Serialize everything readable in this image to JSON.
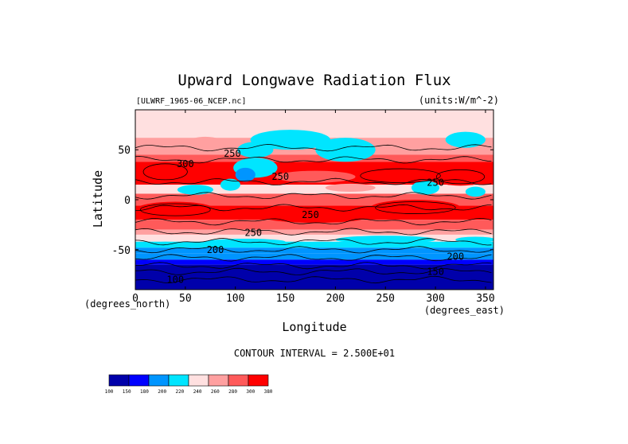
{
  "chart_data": {
    "type": "heatmap",
    "title": "Upward Longwave Radiation Flux",
    "file_label": "[ULWRF_1965-06_NCEP.nc]",
    "units_label": "(units:W/m^-2)",
    "xlabel": "Longitude",
    "ylabel": "Latitude",
    "x_unit_label": "(degrees_east)",
    "y_unit_label": "(degrees_north)",
    "xlim": [
      0,
      358
    ],
    "ylim": [
      -90,
      90
    ],
    "x_ticks": [
      0,
      50,
      100,
      150,
      200,
      250,
      300,
      350
    ],
    "y_ticks": [
      -50,
      0,
      50
    ],
    "contour_interval_text": "CONTOUR INTERVAL = 2.500E+01",
    "colorbar": {
      "levels": [
        "100",
        "150",
        "180",
        "200",
        "220",
        "240",
        "260",
        "280",
        "300",
        "380"
      ],
      "colors": [
        "#0000aa",
        "#0000ff",
        "#0095ff",
        "#00e5ff",
        "#ffe0e0",
        "#ffa0a0",
        "#ff5a5a",
        "#ff0000"
      ]
    },
    "contour_labels": [
      {
        "text": "250",
        "lon": 97,
        "lat": 46
      },
      {
        "text": "300",
        "lon": 50,
        "lat": 36
      },
      {
        "text": "250",
        "lon": 145,
        "lat": 23
      },
      {
        "text": "250",
        "lon": 300,
        "lat": 17
      },
      {
        "text": "250",
        "lon": 175,
        "lat": -15
      },
      {
        "text": "250",
        "lon": 118,
        "lat": -33
      },
      {
        "text": "200",
        "lon": 80,
        "lat": -50
      },
      {
        "text": "200",
        "lon": 320,
        "lat": -57
      },
      {
        "text": "150",
        "lon": 300,
        "lat": -72
      },
      {
        "text": "100",
        "lon": 40,
        "lat": -80
      }
    ]
  }
}
